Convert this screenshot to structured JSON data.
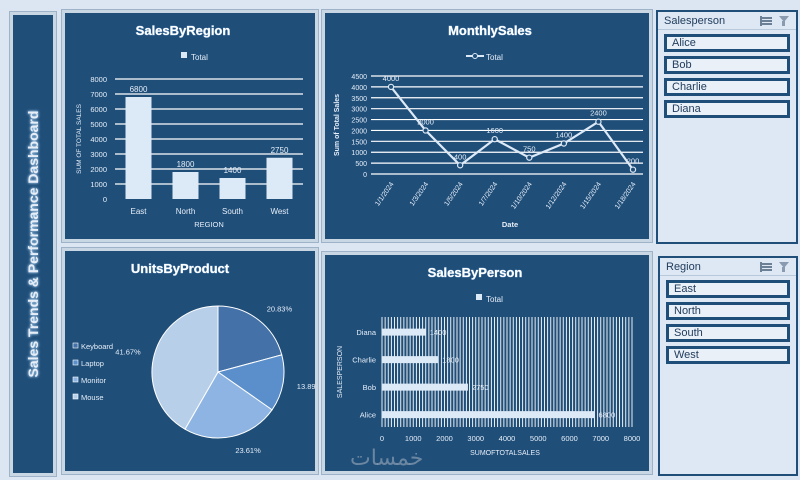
{
  "dashboard": {
    "title": "Sales Trends & Performance Dashboard"
  },
  "charts": {
    "sales_by_region": {
      "type": "bar",
      "title": "SalesByRegion",
      "legend": "Total",
      "categories": [
        "East",
        "North",
        "South",
        "West"
      ],
      "values": [
        6800,
        1800,
        1400,
        2750
      ],
      "data_labels": [
        "6800",
        "1800",
        "1400",
        "2750"
      ],
      "yticks": [
        "0",
        "1000",
        "2000",
        "3000",
        "4000",
        "5000",
        "6000",
        "7000",
        "8000"
      ],
      "ylim": [
        0,
        8000
      ],
      "xlabel": "REGION",
      "ylabel": "SUM OF TOTAL SALES"
    },
    "monthly_sales": {
      "type": "line",
      "title": "MonthlySales",
      "legend": "Total",
      "categories": [
        "1/1/2024",
        "1/3/2024",
        "1/5/2024",
        "1/7/2024",
        "1/10/2024",
        "1/12/2024",
        "1/15/2024",
        "1/18/2024"
      ],
      "values": [
        4000,
        2000,
        400,
        1600,
        750,
        1400,
        2400,
        200
      ],
      "data_labels": [
        "4000",
        "2000",
        "400",
        "1600",
        "750",
        "1400",
        "2400",
        "200"
      ],
      "yticks": [
        "0",
        "500",
        "1000",
        "1500",
        "2000",
        "2500",
        "3000",
        "3500",
        "4000",
        "4500"
      ],
      "ylim": [
        0,
        4500
      ],
      "xlabel": "Date",
      "ylabel": "Sum of Total Sales"
    },
    "units_by_product": {
      "type": "pie",
      "title": "UnitsByProduct",
      "categories": [
        "Keyboard",
        "Laptop",
        "Monitor",
        "Mouse"
      ],
      "values": [
        20.83,
        13.89,
        23.61,
        41.67
      ],
      "data_labels": [
        "20.83%",
        "13.89%",
        "23.61%",
        "41.67%"
      ],
      "colors": [
        "#4472a8",
        "#5b8fcc",
        "#8db4e2",
        "#b8cfea"
      ]
    },
    "sales_by_person": {
      "type": "bar",
      "title": "SalesByPerson",
      "legend": "Total",
      "categories": [
        "Diana",
        "Charlie",
        "Bob",
        "Alice"
      ],
      "values": [
        1400,
        1800,
        2750,
        6800
      ],
      "data_labels": [
        "1400",
        "1800",
        "2750",
        "6800"
      ],
      "xticks": [
        "0",
        "1000",
        "2000",
        "3000",
        "4000",
        "5000",
        "6000",
        "7000",
        "8000"
      ],
      "xlim": [
        0,
        8000
      ],
      "xlabel": "SUMOFTOTALSALES",
      "ylabel": "SALESPERSON"
    }
  },
  "chart_data": [
    {
      "type": "bar",
      "title": "SalesByRegion",
      "categories": [
        "East",
        "North",
        "South",
        "West"
      ],
      "values": [
        6800,
        1800,
        1400,
        2750
      ],
      "xlabel": "REGION",
      "ylabel": "SUM OF TOTAL SALES",
      "ylim": [
        0,
        8000
      ]
    },
    {
      "type": "line",
      "title": "MonthlySales",
      "x": [
        "1/1/2024",
        "1/3/2024",
        "1/5/2024",
        "1/7/2024",
        "1/10/2024",
        "1/12/2024",
        "1/15/2024",
        "1/18/2024"
      ],
      "values": [
        4000,
        2000,
        400,
        1600,
        750,
        1400,
        2400,
        200
      ],
      "xlabel": "Date",
      "ylabel": "Sum of Total Sales",
      "ylim": [
        0,
        4500
      ]
    },
    {
      "type": "pie",
      "title": "UnitsByProduct",
      "categories": [
        "Keyboard",
        "Laptop",
        "Monitor",
        "Mouse"
      ],
      "values": [
        20.83,
        13.89,
        23.61,
        41.67
      ]
    },
    {
      "type": "bar",
      "title": "SalesByPerson",
      "categories": [
        "Diana",
        "Charlie",
        "Bob",
        "Alice"
      ],
      "values": [
        1400,
        1800,
        2750,
        6800
      ],
      "xlabel": "SUMOFTOTALSALES",
      "ylabel": "SALESPERSON",
      "xlim": [
        0,
        8000
      ]
    }
  ],
  "slicers": {
    "salesperson": {
      "title": "Salesperson",
      "items": [
        "Alice",
        "Bob",
        "Charlie",
        "Diana"
      ]
    },
    "region": {
      "title": "Region",
      "items": [
        "East",
        "North",
        "South",
        "West"
      ]
    }
  },
  "watermark": {
    "text": "خمسات"
  },
  "colors": {
    "panel": "#1f4e79",
    "bar": "#dce9f7",
    "line": "#dce9f7",
    "page": "#dbe6f2"
  }
}
